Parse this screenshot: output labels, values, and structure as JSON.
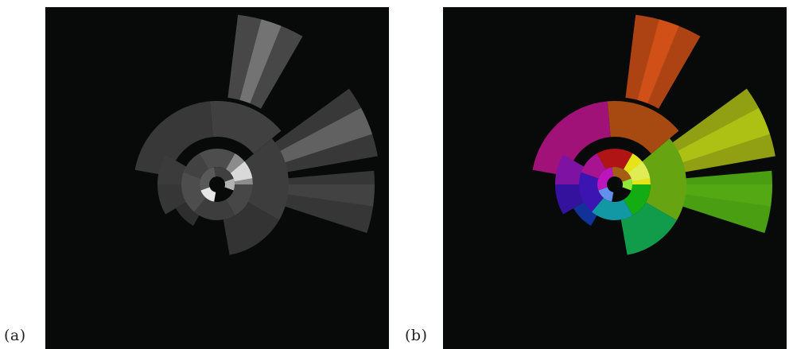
{
  "figure": {
    "panel_a": {
      "caption": "(a)",
      "color_mode": "grayscale",
      "background": "#080a0a"
    },
    "panel_b": {
      "caption": "(b)",
      "color_mode": "hue",
      "background": "#080a0a"
    }
  }
}
